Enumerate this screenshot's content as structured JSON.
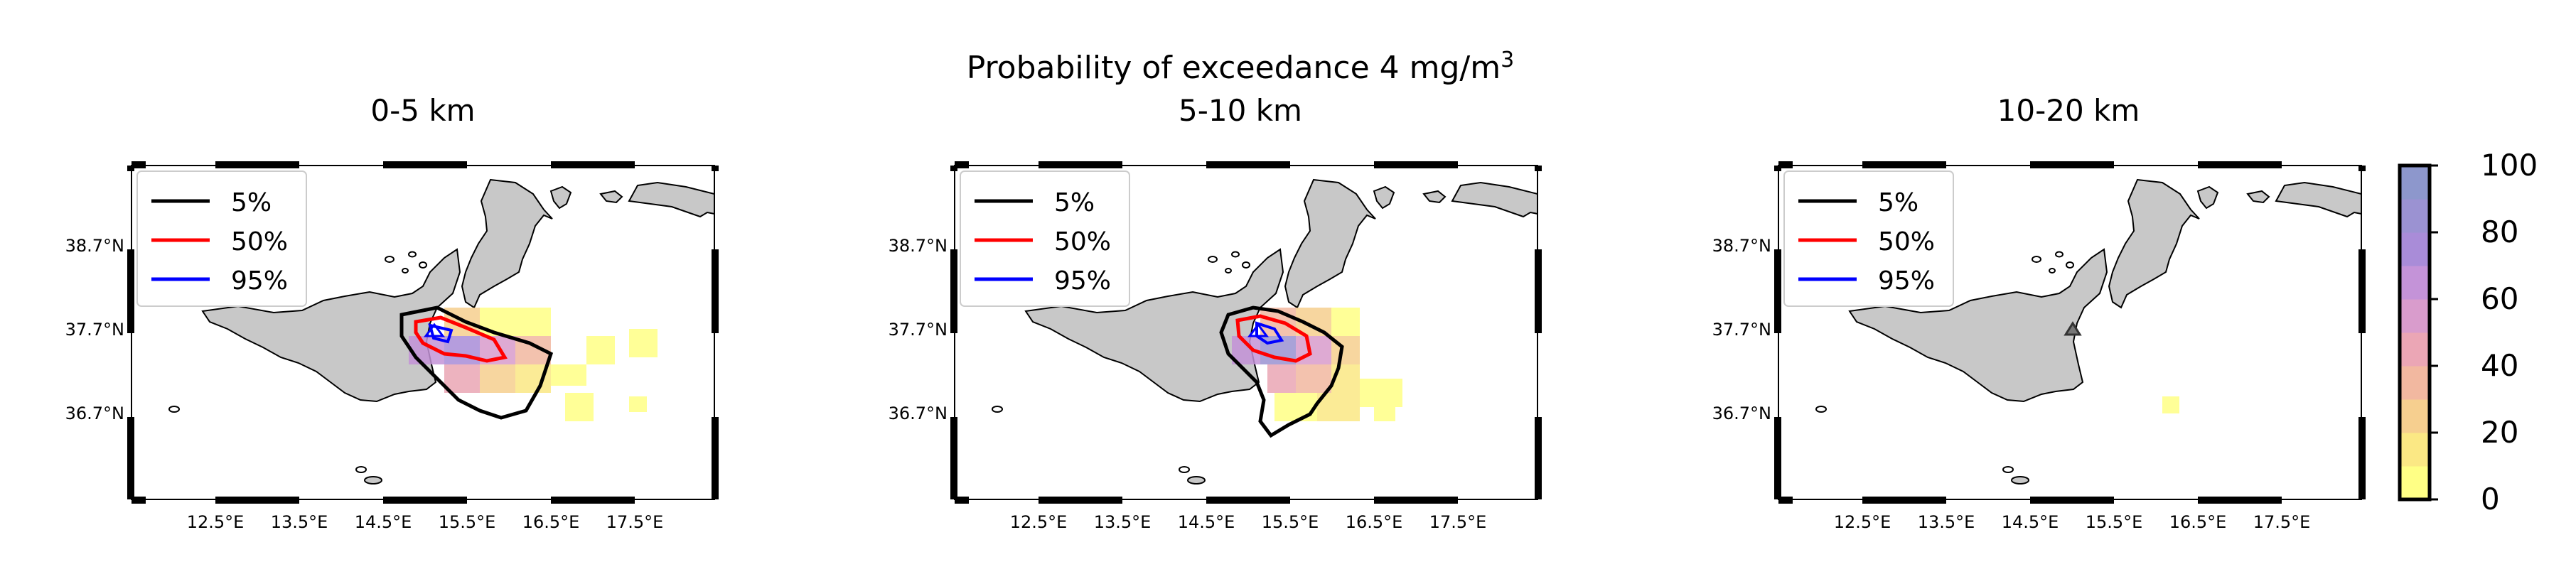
{
  "figure": {
    "title_main": "Probability of exceedance 4 mg/m",
    "title_sup": "3"
  },
  "panels": [
    {
      "subtitle": "0-5 km",
      "has_overlay": true,
      "has_contours": true
    },
    {
      "subtitle": "5-10 km",
      "has_overlay": true,
      "has_contours": true
    },
    {
      "subtitle": "10-20 km",
      "has_overlay": false,
      "has_contours": false
    }
  ],
  "legend": {
    "items": [
      {
        "label": "5%",
        "color": "#000000"
      },
      {
        "label": "50%",
        "color": "#ff0000"
      },
      {
        "label": "95%",
        "color": "#0000ff"
      }
    ]
  },
  "axes": {
    "lat_labels": [
      "38.7°N",
      "37.7°N",
      "36.7°N"
    ],
    "lon_labels": [
      "12.5°E",
      "13.5°E",
      "14.5°E",
      "15.5°E",
      "16.5°E",
      "17.5°E"
    ]
  },
  "colorbar": {
    "ticks": [
      "100",
      "80",
      "60",
      "40",
      "20",
      "0"
    ],
    "colors": [
      "#ffff85",
      "#fbe884",
      "#f6cf8f",
      "#f2b8a0",
      "#eba6b5",
      "#d99ccc",
      "#c493d8",
      "#a98cd8",
      "#9b92d2",
      "#8d97cc"
    ]
  },
  "map": {
    "land_color": "#c8c8c8",
    "volcano_icon": "triangle-volcano-icon"
  }
}
